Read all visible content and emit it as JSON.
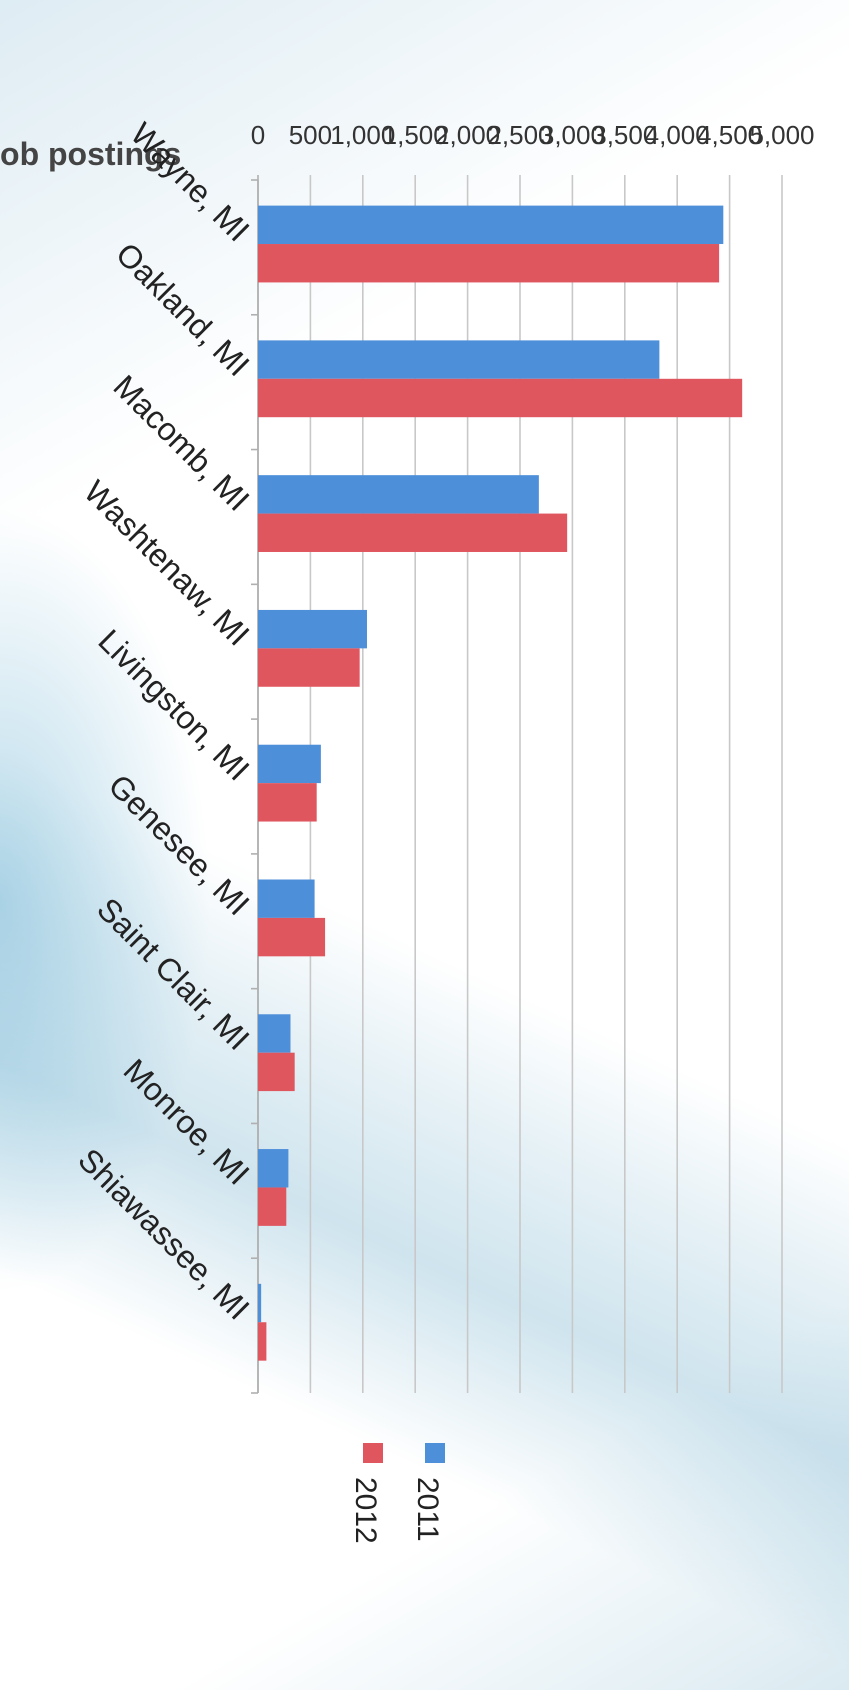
{
  "chart_data": {
    "type": "bar",
    "orientation": "horizontal",
    "title": "Online job postings",
    "categories": [
      "Wayne, MI",
      "Oakland, MI",
      "Macomb, MI",
      "Washtenaw, MI",
      "Livingston, MI",
      "Genesee, MI",
      "Saint Clair, MI",
      "Monroe, MI",
      "Shiawassee, MI"
    ],
    "series": [
      {
        "name": "2011",
        "color": "#4e8fd9",
        "values": [
          4440,
          3830,
          2680,
          1040,
          600,
          540,
          310,
          290,
          30
        ]
      },
      {
        "name": "2012",
        "color": "#e0565f",
        "values": [
          4400,
          4620,
          2950,
          970,
          560,
          640,
          350,
          270,
          80
        ]
      }
    ],
    "value_axis": {
      "min": 0,
      "max": 5000,
      "step": 500,
      "tick_labels": [
        "0",
        "500",
        "1,000",
        "1,500",
        "2,000",
        "2,500",
        "3,000",
        "3,500",
        "4,000",
        "4,500",
        "5,000"
      ]
    },
    "grid": true,
    "legend_position": "bottom-right"
  }
}
